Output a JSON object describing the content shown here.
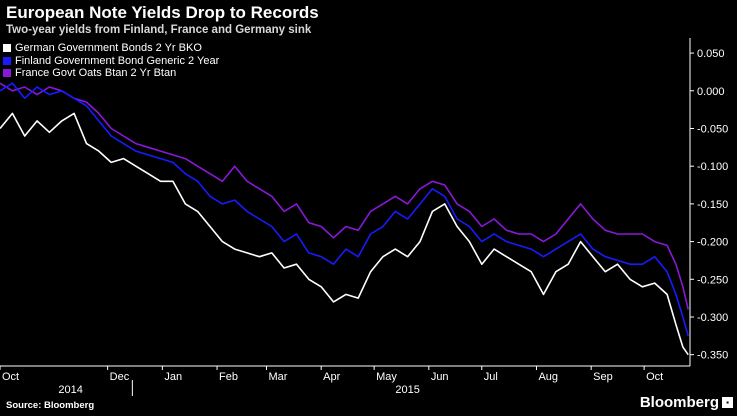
{
  "header": {
    "title": "European Note Yields Drop to Records",
    "subtitle": "Two-year yields from Finland, France and Germany sink"
  },
  "footer": {
    "source": "Source: Bloomberg",
    "brand": "Bloomberg"
  },
  "colors": {
    "background": "#000000",
    "german": "#ffffff",
    "finland": "#1a1aff",
    "france": "#8a18d8"
  },
  "chart_data": {
    "type": "line",
    "title": "European Note Yields Drop to Records",
    "subtitle": "Two-year yields from Finland, France and Germany sink",
    "ylim": [
      -0.365,
      0.07
    ],
    "y_ticks": [
      0.05,
      0.0,
      -0.05,
      -0.1,
      -0.15,
      -0.2,
      -0.25,
      -0.3,
      -0.35
    ],
    "y_tick_labels": [
      "0.050",
      "0.000",
      "-0.050",
      "-0.100",
      "-0.150",
      "-0.200",
      "-0.250",
      "-0.300",
      "-0.350"
    ],
    "y_axis_side": "right",
    "grid": false,
    "legend_position": "top-left",
    "xlim": [
      "2014-10-01",
      "2015-10-27"
    ],
    "month_ticks": [
      {
        "date": "2014-10-01",
        "label": "Oct"
      },
      {
        "date": "2014-12-01",
        "label": "Dec"
      },
      {
        "date": "2015-01-01",
        "label": "Jan"
      },
      {
        "date": "2015-02-01",
        "label": "Feb"
      },
      {
        "date": "2015-03-01",
        "label": "Mar"
      },
      {
        "date": "2015-04-01",
        "label": "Apr"
      },
      {
        "date": "2015-05-01",
        "label": "May"
      },
      {
        "date": "2015-06-01",
        "label": "Jun"
      },
      {
        "date": "2015-07-01",
        "label": "Jul"
      },
      {
        "date": "2015-08-01",
        "label": "Aug"
      },
      {
        "date": "2015-09-01",
        "label": "Sep"
      },
      {
        "date": "2015-10-01",
        "label": "Oct"
      }
    ],
    "year_labels": [
      {
        "date": "2014-11-10",
        "label": "2014"
      },
      {
        "date": "2015-05-20",
        "label": "2015"
      }
    ],
    "series": [
      {
        "name": "German Government Bonds 2 Yr BKO",
        "color": "#ffffff",
        "points": [
          [
            "2014-10-01",
            -0.05
          ],
          [
            "2014-10-08",
            -0.03
          ],
          [
            "2014-10-15",
            -0.06
          ],
          [
            "2014-10-22",
            -0.04
          ],
          [
            "2014-10-29",
            -0.055
          ],
          [
            "2014-11-05",
            -0.04
          ],
          [
            "2014-11-12",
            -0.03
          ],
          [
            "2014-11-19",
            -0.07
          ],
          [
            "2014-11-26",
            -0.08
          ],
          [
            "2014-12-03",
            -0.095
          ],
          [
            "2014-12-10",
            -0.09
          ],
          [
            "2014-12-17",
            -0.1
          ],
          [
            "2014-12-24",
            -0.11
          ],
          [
            "2014-12-31",
            -0.12
          ],
          [
            "2015-01-07",
            -0.12
          ],
          [
            "2015-01-14",
            -0.15
          ],
          [
            "2015-01-21",
            -0.16
          ],
          [
            "2015-01-28",
            -0.18
          ],
          [
            "2015-02-04",
            -0.2
          ],
          [
            "2015-02-11",
            -0.21
          ],
          [
            "2015-02-18",
            -0.215
          ],
          [
            "2015-02-25",
            -0.22
          ],
          [
            "2015-03-04",
            -0.215
          ],
          [
            "2015-03-11",
            -0.235
          ],
          [
            "2015-03-18",
            -0.23
          ],
          [
            "2015-03-25",
            -0.25
          ],
          [
            "2015-04-01",
            -0.26
          ],
          [
            "2015-04-08",
            -0.28
          ],
          [
            "2015-04-15",
            -0.27
          ],
          [
            "2015-04-22",
            -0.275
          ],
          [
            "2015-04-29",
            -0.24
          ],
          [
            "2015-05-06",
            -0.22
          ],
          [
            "2015-05-13",
            -0.21
          ],
          [
            "2015-05-20",
            -0.22
          ],
          [
            "2015-05-27",
            -0.2
          ],
          [
            "2015-06-03",
            -0.16
          ],
          [
            "2015-06-10",
            -0.15
          ],
          [
            "2015-06-17",
            -0.18
          ],
          [
            "2015-06-24",
            -0.2
          ],
          [
            "2015-07-01",
            -0.23
          ],
          [
            "2015-07-08",
            -0.21
          ],
          [
            "2015-07-15",
            -0.22
          ],
          [
            "2015-07-22",
            -0.23
          ],
          [
            "2015-07-29",
            -0.24
          ],
          [
            "2015-08-05",
            -0.27
          ],
          [
            "2015-08-12",
            -0.24
          ],
          [
            "2015-08-19",
            -0.23
          ],
          [
            "2015-08-26",
            -0.2
          ],
          [
            "2015-09-02",
            -0.22
          ],
          [
            "2015-09-09",
            -0.24
          ],
          [
            "2015-09-16",
            -0.23
          ],
          [
            "2015-09-23",
            -0.25
          ],
          [
            "2015-09-30",
            -0.26
          ],
          [
            "2015-10-07",
            -0.255
          ],
          [
            "2015-10-14",
            -0.27
          ],
          [
            "2015-10-19",
            -0.31
          ],
          [
            "2015-10-23",
            -0.34
          ],
          [
            "2015-10-26",
            -0.35
          ]
        ]
      },
      {
        "name": "Finland Government Bond Generic 2 Year",
        "color": "#1a1aff",
        "points": [
          [
            "2014-10-01",
            0.0
          ],
          [
            "2014-10-08",
            0.01
          ],
          [
            "2014-10-15",
            -0.01
          ],
          [
            "2014-10-22",
            0.005
          ],
          [
            "2014-10-29",
            -0.005
          ],
          [
            "2014-11-05",
            0.0
          ],
          [
            "2014-11-12",
            -0.01
          ],
          [
            "2014-11-19",
            -0.02
          ],
          [
            "2014-11-26",
            -0.04
          ],
          [
            "2014-12-03",
            -0.06
          ],
          [
            "2014-12-10",
            -0.07
          ],
          [
            "2014-12-17",
            -0.08
          ],
          [
            "2014-12-24",
            -0.085
          ],
          [
            "2014-12-31",
            -0.09
          ],
          [
            "2015-01-07",
            -0.095
          ],
          [
            "2015-01-14",
            -0.11
          ],
          [
            "2015-01-21",
            -0.12
          ],
          [
            "2015-01-28",
            -0.14
          ],
          [
            "2015-02-04",
            -0.15
          ],
          [
            "2015-02-11",
            -0.145
          ],
          [
            "2015-02-18",
            -0.16
          ],
          [
            "2015-02-25",
            -0.17
          ],
          [
            "2015-03-04",
            -0.18
          ],
          [
            "2015-03-11",
            -0.2
          ],
          [
            "2015-03-18",
            -0.19
          ],
          [
            "2015-03-25",
            -0.215
          ],
          [
            "2015-04-01",
            -0.22
          ],
          [
            "2015-04-08",
            -0.23
          ],
          [
            "2015-04-15",
            -0.21
          ],
          [
            "2015-04-22",
            -0.22
          ],
          [
            "2015-04-29",
            -0.19
          ],
          [
            "2015-05-06",
            -0.18
          ],
          [
            "2015-05-13",
            -0.16
          ],
          [
            "2015-05-20",
            -0.17
          ],
          [
            "2015-05-27",
            -0.15
          ],
          [
            "2015-06-03",
            -0.13
          ],
          [
            "2015-06-10",
            -0.14
          ],
          [
            "2015-06-17",
            -0.17
          ],
          [
            "2015-06-24",
            -0.18
          ],
          [
            "2015-07-01",
            -0.2
          ],
          [
            "2015-07-08",
            -0.19
          ],
          [
            "2015-07-15",
            -0.2
          ],
          [
            "2015-07-22",
            -0.205
          ],
          [
            "2015-07-29",
            -0.21
          ],
          [
            "2015-08-05",
            -0.22
          ],
          [
            "2015-08-12",
            -0.21
          ],
          [
            "2015-08-19",
            -0.2
          ],
          [
            "2015-08-26",
            -0.19
          ],
          [
            "2015-09-02",
            -0.21
          ],
          [
            "2015-09-09",
            -0.22
          ],
          [
            "2015-09-16",
            -0.225
          ],
          [
            "2015-09-23",
            -0.23
          ],
          [
            "2015-09-30",
            -0.23
          ],
          [
            "2015-10-07",
            -0.22
          ],
          [
            "2015-10-14",
            -0.24
          ],
          [
            "2015-10-19",
            -0.27
          ],
          [
            "2015-10-23",
            -0.3
          ],
          [
            "2015-10-26",
            -0.325
          ]
        ]
      },
      {
        "name": "France Govt Oats Btan 2 Yr Btan",
        "color": "#8a18d8",
        "points": [
          [
            "2014-10-01",
            0.01
          ],
          [
            "2014-10-08",
            0.0
          ],
          [
            "2014-10-15",
            0.005
          ],
          [
            "2014-10-22",
            -0.005
          ],
          [
            "2014-10-29",
            0.005
          ],
          [
            "2014-11-05",
            0.0
          ],
          [
            "2014-11-12",
            -0.01
          ],
          [
            "2014-11-19",
            -0.015
          ],
          [
            "2014-11-26",
            -0.03
          ],
          [
            "2014-12-03",
            -0.05
          ],
          [
            "2014-12-10",
            -0.06
          ],
          [
            "2014-12-17",
            -0.07
          ],
          [
            "2014-12-24",
            -0.075
          ],
          [
            "2014-12-31",
            -0.08
          ],
          [
            "2015-01-07",
            -0.085
          ],
          [
            "2015-01-14",
            -0.09
          ],
          [
            "2015-01-21",
            -0.1
          ],
          [
            "2015-01-28",
            -0.11
          ],
          [
            "2015-02-04",
            -0.12
          ],
          [
            "2015-02-11",
            -0.1
          ],
          [
            "2015-02-18",
            -0.12
          ],
          [
            "2015-02-25",
            -0.13
          ],
          [
            "2015-03-04",
            -0.14
          ],
          [
            "2015-03-11",
            -0.16
          ],
          [
            "2015-03-18",
            -0.15
          ],
          [
            "2015-03-25",
            -0.175
          ],
          [
            "2015-04-01",
            -0.18
          ],
          [
            "2015-04-08",
            -0.195
          ],
          [
            "2015-04-15",
            -0.18
          ],
          [
            "2015-04-22",
            -0.185
          ],
          [
            "2015-04-29",
            -0.16
          ],
          [
            "2015-05-06",
            -0.15
          ],
          [
            "2015-05-13",
            -0.14
          ],
          [
            "2015-05-20",
            -0.15
          ],
          [
            "2015-05-27",
            -0.13
          ],
          [
            "2015-06-03",
            -0.12
          ],
          [
            "2015-06-10",
            -0.125
          ],
          [
            "2015-06-17",
            -0.15
          ],
          [
            "2015-06-24",
            -0.16
          ],
          [
            "2015-07-01",
            -0.18
          ],
          [
            "2015-07-08",
            -0.17
          ],
          [
            "2015-07-15",
            -0.185
          ],
          [
            "2015-07-22",
            -0.19
          ],
          [
            "2015-07-29",
            -0.19
          ],
          [
            "2015-08-05",
            -0.2
          ],
          [
            "2015-08-12",
            -0.19
          ],
          [
            "2015-08-19",
            -0.17
          ],
          [
            "2015-08-26",
            -0.15
          ],
          [
            "2015-09-02",
            -0.17
          ],
          [
            "2015-09-09",
            -0.185
          ],
          [
            "2015-09-16",
            -0.19
          ],
          [
            "2015-09-23",
            -0.19
          ],
          [
            "2015-09-30",
            -0.19
          ],
          [
            "2015-10-07",
            -0.2
          ],
          [
            "2015-10-14",
            -0.205
          ],
          [
            "2015-10-19",
            -0.23
          ],
          [
            "2015-10-23",
            -0.26
          ],
          [
            "2015-10-26",
            -0.29
          ]
        ]
      }
    ]
  }
}
